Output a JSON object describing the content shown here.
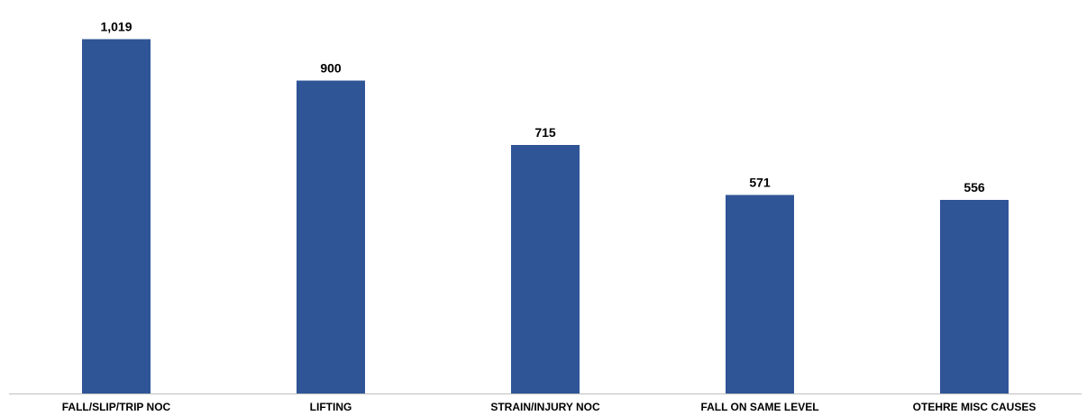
{
  "chart_data": {
    "type": "bar",
    "categories": [
      "FALL/SLIP/TRIP NOC",
      "LIFTING",
      "STRAIN/INJURY NOC",
      "FALL ON SAME LEVEL",
      "OTEHRE MISC CAUSES"
    ],
    "values": [
      1019,
      900,
      715,
      571,
      556
    ],
    "value_labels": [
      "1,019",
      "900",
      "715",
      "571",
      "556"
    ],
    "title": "",
    "xlabel": "",
    "ylabel": "",
    "ylim": [
      0,
      1100
    ],
    "grid": false,
    "legend": "none",
    "bar_color": "#2F5597",
    "axis_color": "#BFBFBF"
  }
}
